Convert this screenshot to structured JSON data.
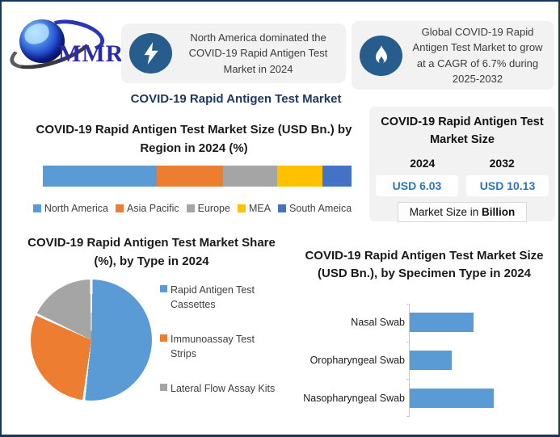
{
  "brand": {
    "logo_text": "MMR"
  },
  "colors": {
    "frame_border": "#17375E",
    "panel_bg": "#F2F2F2",
    "icon_circle": "#275D8D",
    "title_navy": "#1F3864",
    "value_blue": "#2E75B6",
    "series_blue": "#5B9BD5",
    "series_orange": "#ED7D31",
    "series_gray": "#A5A5A5",
    "series_yellow": "#FFC000",
    "series_darkblue": "#4472C4"
  },
  "callouts": [
    {
      "icon": "lightning-icon",
      "text": "North America dominated the COVID-19 Rapid Antigen Test Market in 2024"
    },
    {
      "icon": "flame-icon",
      "text": "Global COVID-19 Rapid Antigen Test Market to grow at a CAGR of 6.7% during 2025-2032"
    }
  ],
  "main_title": "COVID-19 Rapid Antigen Test Market",
  "market_size_panel": {
    "title": "COVID-19 Rapid Antigen Test Market Size",
    "year_start": "2024",
    "year_end": "2032",
    "value_start": "USD 6.03",
    "value_end": "USD 10.13",
    "note_prefix": "Market Size in ",
    "note_bold": "Billion"
  },
  "chart_data": [
    {
      "id": "region_share",
      "type": "bar",
      "subtype": "stacked-horizontal-100pct",
      "title": "COVID-19 Rapid Antigen Test Market Size (USD Bn.) by Region in 2024 (%)",
      "categories": [
        "North America",
        "Asia Pacific",
        "Europe",
        "MEA",
        "South Ameica"
      ],
      "values": [
        37,
        21.5,
        17.5,
        14.5,
        9.5
      ],
      "colors": [
        "#5B9BD5",
        "#ED7D31",
        "#A5A5A5",
        "#FFC000",
        "#4472C4"
      ],
      "legend_position": "bottom",
      "note": "segment widths are percent shares estimated from the graphic; no numeric labels shown"
    },
    {
      "id": "type_share",
      "type": "pie",
      "title": "COVID-19 Rapid Antigen Test Market Share (%), by Type in 2024",
      "categories": [
        "Rapid Antigen Test Cassettes",
        "Immunoassay Test Strips",
        "Lateral Flow Assay Kits"
      ],
      "values": [
        52,
        30,
        18
      ],
      "colors": [
        "#5B9BD5",
        "#ED7D31",
        "#A5A5A5"
      ],
      "legend_position": "right",
      "note": "slice percentages estimated from the graphic; no numeric labels shown"
    },
    {
      "id": "specimen_size",
      "type": "bar",
      "subtype": "horizontal",
      "title": "COVID-19 Rapid Antigen Test Market Size (USD Bn.), by Specimen Type in 2024",
      "categories": [
        "Nasal Swab",
        "Oropharyngeal Swab",
        "Nasopharyngeal Swab"
      ],
      "values": [
        76,
        50,
        100
      ],
      "color": "#5B9BD5",
      "note": "relative bar lengths (% of longest bar); axis has no visible numeric labels"
    }
  ]
}
